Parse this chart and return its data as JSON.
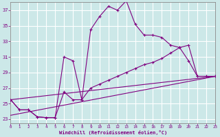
{
  "xlabel": "Windchill (Refroidissement éolien,°C)",
  "xlim": [
    0,
    23
  ],
  "ylim": [
    22.5,
    38.0
  ],
  "yticks": [
    23,
    25,
    27,
    29,
    31,
    33,
    35,
    37
  ],
  "xticks": [
    0,
    1,
    2,
    3,
    4,
    5,
    6,
    7,
    8,
    9,
    10,
    11,
    12,
    13,
    14,
    15,
    16,
    17,
    18,
    19,
    20,
    21,
    22,
    23
  ],
  "bg_color": "#cce8e8",
  "line_color": "#800080",
  "grid_color": "#aacccc",
  "line1_x": [
    0,
    1,
    2,
    3,
    4,
    5,
    6,
    7,
    8,
    9,
    10,
    11,
    12,
    13,
    14,
    15,
    16,
    17,
    18,
    19,
    20,
    21,
    22,
    23
  ],
  "line1_y": [
    25.5,
    24.2,
    24.2,
    23.3,
    23.2,
    23.2,
    31.0,
    30.5,
    25.5,
    34.5,
    36.2,
    37.5,
    37.0,
    38.2,
    35.2,
    33.8,
    33.8,
    33.5,
    32.5,
    32.2,
    30.5,
    28.5,
    28.5,
    28.5
  ],
  "line2_x": [
    0,
    1,
    2,
    3,
    4,
    5,
    6,
    7,
    8,
    9,
    10,
    11,
    12,
    13,
    14,
    15,
    16,
    17,
    18,
    19,
    20,
    21,
    22,
    23
  ],
  "line2_y": [
    25.5,
    24.2,
    24.2,
    23.3,
    23.2,
    23.2,
    26.5,
    25.5,
    25.5,
    27.0,
    27.5,
    28.0,
    28.5,
    29.0,
    29.5,
    30.0,
    30.3,
    30.8,
    31.5,
    32.2,
    32.5,
    28.5,
    28.5,
    28.5
  ],
  "line3_x": [
    0,
    23
  ],
  "line3_y": [
    23.5,
    28.5
  ],
  "line4_x": [
    0,
    23
  ],
  "line4_y": [
    25.5,
    28.5
  ]
}
